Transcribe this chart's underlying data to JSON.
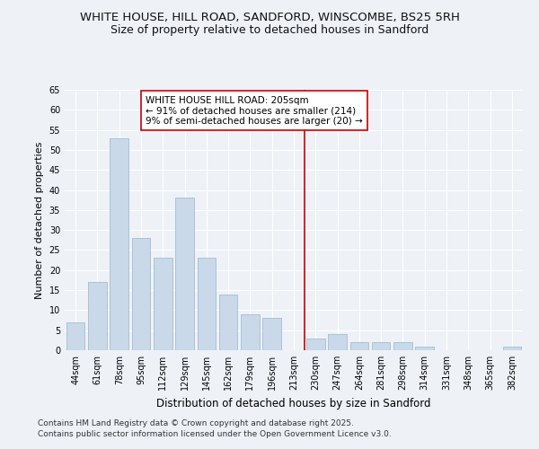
{
  "title": "WHITE HOUSE, HILL ROAD, SANDFORD, WINSCOMBE, BS25 5RH",
  "subtitle": "Size of property relative to detached houses in Sandford",
  "xlabel": "Distribution of detached houses by size in Sandford",
  "ylabel": "Number of detached properties",
  "bar_color": "#c9d9ea",
  "bar_edge_color": "#9ab4cc",
  "background_color": "#eef2f7",
  "grid_color": "#ffffff",
  "categories": [
    "44sqm",
    "61sqm",
    "78sqm",
    "95sqm",
    "112sqm",
    "129sqm",
    "145sqm",
    "162sqm",
    "179sqm",
    "196sqm",
    "213sqm",
    "230sqm",
    "247sqm",
    "264sqm",
    "281sqm",
    "298sqm",
    "314sqm",
    "331sqm",
    "348sqm",
    "365sqm",
    "382sqm"
  ],
  "values": [
    7,
    17,
    53,
    28,
    23,
    38,
    23,
    14,
    9,
    8,
    0,
    3,
    4,
    2,
    2,
    2,
    1,
    0,
    0,
    0,
    1
  ],
  "vline_x": 10.5,
  "vline_color": "#cc0000",
  "annotation_text": "WHITE HOUSE HILL ROAD: 205sqm\n← 91% of detached houses are smaller (214)\n9% of semi-detached houses are larger (20) →",
  "annotation_box_color": "#ffffff",
  "annotation_box_edge": "#cc0000",
  "ylim": [
    0,
    65
  ],
  "yticks": [
    0,
    5,
    10,
    15,
    20,
    25,
    30,
    35,
    40,
    45,
    50,
    55,
    60,
    65
  ],
  "footer": "Contains HM Land Registry data © Crown copyright and database right 2025.\nContains public sector information licensed under the Open Government Licence v3.0.",
  "title_fontsize": 9.5,
  "subtitle_fontsize": 9,
  "xlabel_fontsize": 8.5,
  "ylabel_fontsize": 8,
  "tick_fontsize": 7,
  "annotation_fontsize": 7.5,
  "footer_fontsize": 6.5
}
